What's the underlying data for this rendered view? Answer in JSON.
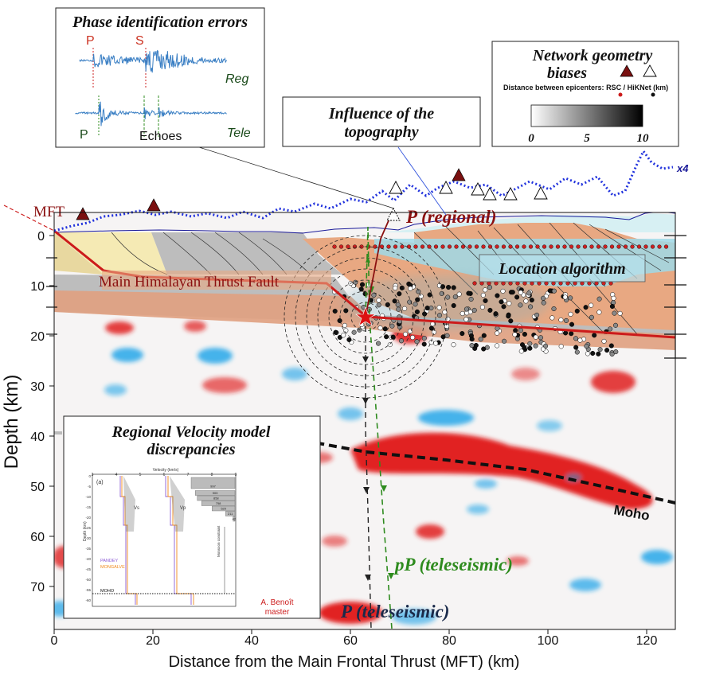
{
  "xaxis": {
    "label": "Distance from the Main Frontal Thrust (MFT) (km)",
    "ticks": [
      "0",
      "20",
      "40",
      "60",
      "80",
      "100",
      "120"
    ],
    "range": [
      0,
      126
    ]
  },
  "yaxis": {
    "label": "Depth (km)",
    "ticks": [
      "0",
      "10",
      "20",
      "30",
      "40",
      "50",
      "60",
      "70"
    ],
    "range": [
      -3,
      79
    ]
  },
  "labels": {
    "mft": "MFT",
    "mht": "Main Himalayan Thrust Fault",
    "moho": "Moho",
    "p_regional": "P (regional)",
    "pp_tele": "pP (teleseismic)",
    "p_tele": "P (teleseismic)",
    "location_algorithm": "Location algorithm",
    "topo_scale": "x4"
  },
  "panels": {
    "phase": {
      "title": "Phase identification errors",
      "p_reg": "P",
      "s_reg": "S",
      "reg": "Reg",
      "p_tele": "P",
      "echoes": "Echoes",
      "tele": "Tele"
    },
    "topography": {
      "title_line1": "Influence of the",
      "title_line2": "topography"
    },
    "network": {
      "title_line1": "Network geometry",
      "title_line2": "biases",
      "legend_prefix": "Distance between epicenters:",
      "legend_rsc": "RSC",
      "legend_sep": "/",
      "legend_hiknet": "HiKNet",
      "legend_unit": "(km)",
      "scale_ticks": [
        "0",
        "5",
        "10"
      ]
    },
    "velocity": {
      "title_line1": "Regional Velocity model",
      "title_line2": "discrepancies",
      "inset_tag": "(a)",
      "inset_top_label": "Velocity (km/s)",
      "vs": "Vs",
      "vp": "Vp",
      "pandey": "PANDEY",
      "mongalve": "MONGALVE",
      "moho": "MOHO",
      "constraint": "Monsoon constraint",
      "depth_label": "Depth (km)",
      "author_line1": "A. Benoît",
      "author_line2": "master",
      "vel_ticks": [
        "3",
        "4",
        "5",
        "6",
        "7",
        "8",
        "9"
      ],
      "depth_ticks": [
        "0",
        "-5",
        "-10",
        "-15",
        "-20",
        "-25",
        "-30",
        "-35",
        "-40",
        "-45",
        "-50",
        "-55",
        "-60"
      ],
      "bar_values": [
        "997",
        "903",
        "858",
        "758",
        "520",
        "211",
        "42"
      ]
    }
  },
  "colors": {
    "fault": "#cc1b1b",
    "regional_phase": "#8b1010",
    "teleseismic_pp": "#2e8b1e",
    "teleseismic_p": "#1a2a4a",
    "topography": "#2233cc",
    "station_red": "#7a1010",
    "velocity_positive": "#e01818",
    "velocity_negative": "#1aa3e8"
  }
}
